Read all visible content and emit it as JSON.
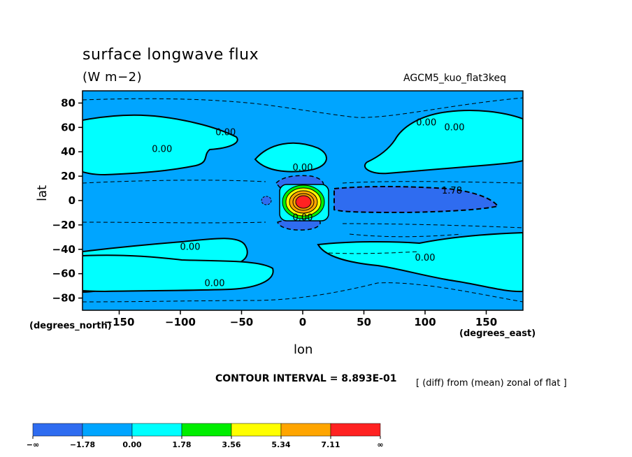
{
  "colors": {
    "lvl_neg_inf": "#2f6cf0",
    "lvl_neg": "#00a5ff",
    "lvl_zero": "#00ffff",
    "lvl_1": "#00ee00",
    "lvl_2": "#ffff00",
    "lvl_3": "#ffa500",
    "lvl_4": "#ff2222"
  },
  "chart_data": {
    "type": "heatmap",
    "title": "surface longwave flux",
    "subtitle": "(W m−2)",
    "run_label": "AGCM5_kuo_flat3keq",
    "xlabel": "lon",
    "ylabel": "lat",
    "x_units": "(degrees_east)",
    "y_units": "(degrees_north)",
    "xlim": [
      -180,
      180
    ],
    "ylim": [
      -90,
      90
    ],
    "x_ticks": [
      -150,
      -100,
      -50,
      0,
      50,
      100,
      150
    ],
    "x_tick_labels": [
      "−150",
      "−100",
      "−50",
      "0",
      "50",
      "100",
      "150"
    ],
    "y_ticks": [
      80,
      60,
      40,
      20,
      0,
      -20,
      -40,
      -60,
      -80
    ],
    "y_tick_labels": [
      "80",
      "60",
      "40",
      "20",
      "0",
      "−20",
      "−40",
      "−60",
      "−80"
    ],
    "contour_interval": "CONTOUR INTERVAL = 8.893E-01",
    "note": "[ (diff) from (mean) zonal of flat ]",
    "contour_labels": [
      {
        "text": "0.00",
        "lon": -63,
        "lat": 56
      },
      {
        "text": "0.00",
        "lon": -115,
        "lat": 42
      },
      {
        "text": "0.00",
        "lon": 0,
        "lat": 27
      },
      {
        "text": "0.00",
        "lon": 101,
        "lat": 64
      },
      {
        "text": "0.00",
        "lon": 124,
        "lat": 60
      },
      {
        "text": "1.78",
        "lon": 122,
        "lat": 8
      },
      {
        "text": "0.00",
        "lon": 0,
        "lat": -14
      },
      {
        "text": "0.00",
        "lon": -92,
        "lat": -38
      },
      {
        "text": "0.00",
        "lon": 100,
        "lat": -47
      },
      {
        "text": "0.00",
        "lon": -72,
        "lat": -68
      }
    ],
    "colorbar": {
      "labels": [
        "−∞",
        "−1.78",
        "0.00",
        "1.78",
        "3.56",
        "5.34",
        "7.11",
        "∞"
      ],
      "levels": [
        -1.78,
        0.0,
        1.78,
        3.56,
        5.34,
        7.11
      ]
    }
  }
}
